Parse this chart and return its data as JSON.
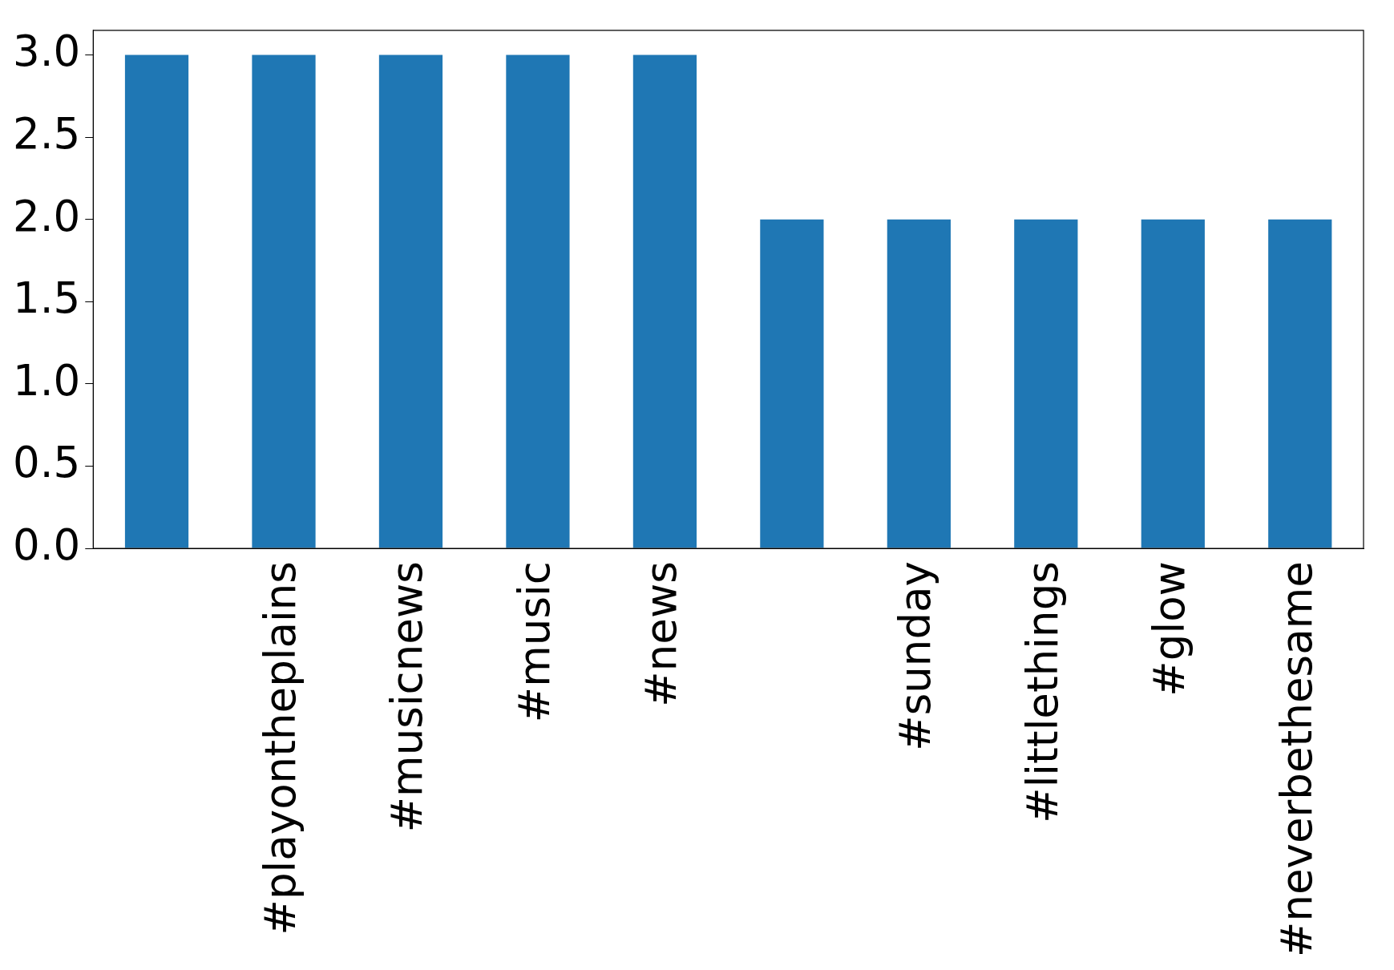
{
  "chart_data": {
    "type": "bar",
    "categories": [
      null,
      "#playontheplains",
      "#musicnews",
      "#music",
      "#news",
      null,
      "#sunday",
      "#littlethings",
      "#glow",
      "#neverbethesame"
    ],
    "values": [
      3,
      3,
      3,
      3,
      3,
      2,
      2,
      2,
      2,
      2
    ],
    "color": "#1f77b4",
    "ylim": [
      0,
      3.15
    ],
    "yticks": [
      {
        "value": 0,
        "label": "0.0"
      },
      {
        "value": 0.5,
        "label": "0.5"
      },
      {
        "value": 1,
        "label": "1.0"
      },
      {
        "value": 1.5,
        "label": "1.5"
      },
      {
        "value": 2,
        "label": "2.0"
      },
      {
        "value": 2.5,
        "label": "2.5"
      },
      {
        "value": 3,
        "label": "3.0"
      }
    ],
    "grid": false,
    "legend": false
  }
}
